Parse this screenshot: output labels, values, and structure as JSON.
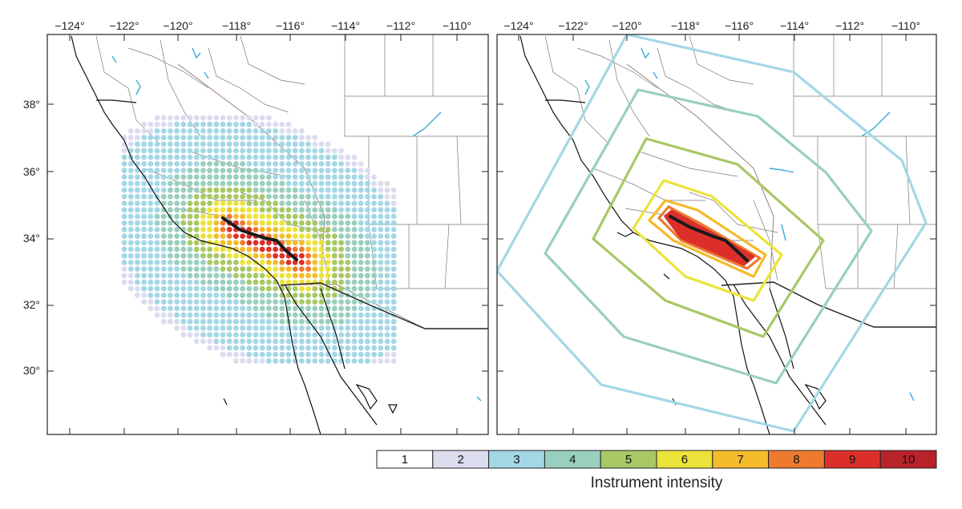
{
  "axes": {
    "lon_labels": [
      "−124°",
      "−122°",
      "−120°",
      "−118°",
      "−116°",
      "−114°",
      "−112°",
      "−110°"
    ],
    "lat_labels": [
      "38°",
      "36°",
      "34°",
      "32°",
      "30°"
    ]
  },
  "legend": {
    "title": "Instrument intensity",
    "levels": [
      {
        "label": "1",
        "color": "#ffffff"
      },
      {
        "label": "2",
        "color": "#dcdcef"
      },
      {
        "label": "3",
        "color": "#a4d7e5"
      },
      {
        "label": "4",
        "color": "#99cfbf"
      },
      {
        "label": "5",
        "color": "#a8c865"
      },
      {
        "label": "6",
        "color": "#ece33a"
      },
      {
        "label": "7",
        "color": "#f4bb2b"
      },
      {
        "label": "8",
        "color": "#ee7a30"
      },
      {
        "label": "9",
        "color": "#dd2f2a"
      },
      {
        "label": "10",
        "color": "#b8232a"
      }
    ]
  },
  "colors": {
    "water": "#3aa9d8",
    "border": "#777777",
    "state_boundary": "#9a7f75",
    "coast": "#111111",
    "fault": "#1a1a1a"
  }
}
